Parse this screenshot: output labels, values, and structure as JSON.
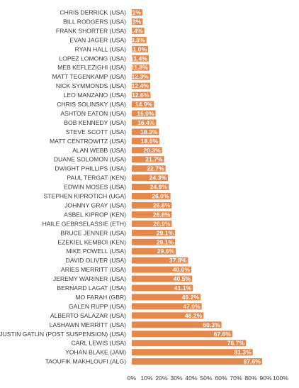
{
  "chart_data": {
    "type": "bar",
    "orientation": "horizontal",
    "title": "",
    "xlabel": "",
    "ylabel": "",
    "xlim": [
      0,
      100
    ],
    "grid": false,
    "legend": "none",
    "bar_color": "#e8874a",
    "tick_labels": [
      "0%",
      "10%",
      "20%",
      "30%",
      "40%",
      "50%",
      "60%",
      "70%",
      "80%",
      "90%",
      "100%"
    ],
    "categories": [
      "CHRIS DERRICK (USA)",
      "BILL RODGERS (USA)",
      "FRANK SHORTER (USA)",
      "EVAN JAGER (USA)",
      "RYAN HALL (USA)",
      "LOPEZ LOMONG (USA)",
      "MEB KEFLEZIGHI (USA)",
      "MATT TEGENKAMP (USA)",
      "NICK SYMMONDS (USA)",
      "LEO MANZANO (USA)",
      "CHRIS SOLINSKY (USA)",
      "ASHTON EATON (USA)",
      "BOB KENNEDY (USA)",
      "STEVE SCOTT (USA)",
      "MATT CENTROWITZ (USA)",
      "ALAN WEBB (USA)",
      "DUANE SOLOMON (USA)",
      "DWIGHT PHILLIPS (USA)",
      "PAUL TERGAT (KEN)",
      "EDWIN MOSES (USA)",
      "STEPHEN KIPROTICH (UGA)",
      "JOHNNY GRAY (USA)",
      "ASBEL KIPROP (KEN)",
      "HAILE GEBRSELASSIE (ETH)",
      "BRUCE JENNER (USA)",
      "EZEKIEL KEMBOI (KEN)",
      "MIKE POWELL (USA)",
      "DAVID OLIVER (USA)",
      "ARIES MERRITT (USA)",
      "JEREMY WARINER (USA)",
      "BERNARD LAGAT (USA)",
      "MO FARAH (GBR)",
      "GALEN RUPP (USA)",
      "ALBERTO SALAZAR (USA)",
      "LASHAWN MERRITT (USA)",
      "JUSTIN GATLIN (POST SUSPENSION) (USA)",
      "CARL LEWIS (USA)",
      "YOHAN BLAKE (JAM)",
      "TAOUFIK MAKHLOUFI (ALG)"
    ],
    "values": [
      7.1,
      7.3,
      8.4,
      9.8,
      11.0,
      11.4,
      11.8,
      12.3,
      12.4,
      12.6,
      14.9,
      16.0,
      16.4,
      18.3,
      18.6,
      20.3,
      21.7,
      22.7,
      24.3,
      24.8,
      26.0,
      26.8,
      26.8,
      26.9,
      29.1,
      29.1,
      29.6,
      37.8,
      40.0,
      40.5,
      41.1,
      46.2,
      47.0,
      48.2,
      60.3,
      67.6,
      76.7,
      81.3,
      87.6
    ],
    "data_labels": [
      "7.1%",
      "7.3%",
      "8.4%",
      "9.8%",
      "11.0%",
      "11.4%",
      "11.8%",
      "12.3%",
      "12.4%",
      "12.6%",
      "14.9%",
      "16.0%",
      "16.4%",
      "18.3%",
      "18.6%",
      "20.3%",
      "21.7%",
      "22.7%",
      "24.3%",
      "24.8%",
      "26.0%",
      "26.8%",
      "26.8%",
      "26.9%",
      "29.1%",
      "29.1%",
      "29.6%",
      "37.8%",
      "40.0%",
      "40.5%",
      "41.1%",
      "46.2%",
      "47.0%",
      "48.2%",
      "60.3%",
      "67.6%",
      "76.7%",
      "81.3%",
      "87.6%"
    ]
  }
}
